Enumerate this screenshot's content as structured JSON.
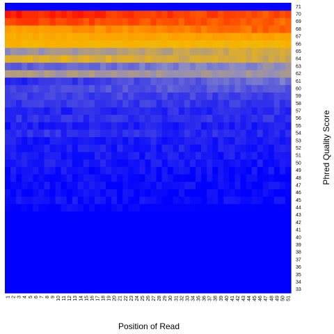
{
  "chart_data": {
    "type": "heatmap",
    "title": "",
    "xlabel": "Position of Read",
    "ylabel": "Phred Quality Score",
    "x": [
      1,
      2,
      3,
      4,
      5,
      6,
      7,
      8,
      9,
      10,
      11,
      12,
      13,
      14,
      15,
      16,
      17,
      18,
      19,
      20,
      21,
      22,
      23,
      24,
      25,
      26,
      27,
      28,
      29,
      30,
      31,
      32,
      33,
      34,
      35,
      36,
      37,
      38,
      39,
      40,
      41,
      42,
      43,
      44,
      45,
      46,
      47,
      48,
      49,
      50,
      51
    ],
    "y": [
      33,
      34,
      35,
      36,
      37,
      38,
      39,
      40,
      41,
      42,
      43,
      44,
      45,
      46,
      47,
      48,
      49,
      50,
      51,
      52,
      53,
      54,
      55,
      56,
      57,
      58,
      59,
      60,
      61,
      62,
      63,
      64,
      65,
      66,
      67,
      68,
      69,
      70,
      71
    ],
    "color_scale": {
      "low": "#0000ff",
      "mid_low": "#8a8ac8",
      "mid": "#f5b800",
      "high": "#ff9900",
      "peak": "#ff0000"
    },
    "intensity_rows": {
      "71": [
        0.0,
        0.0
      ],
      "70": [
        0.95,
        0.85
      ],
      "69": [
        0.88,
        0.82
      ],
      "68": [
        0.68,
        0.82
      ],
      "67": [
        0.62,
        0.68
      ],
      "66": [
        0.58,
        0.56
      ],
      "65": [
        0.32,
        0.5
      ],
      "64": [
        0.5,
        0.45
      ],
      "63": [
        0.2,
        0.32
      ],
      "62": [
        0.38,
        0.34
      ],
      "61": [
        0.08,
        0.25
      ],
      "60": [
        0.16,
        0.2
      ],
      "59": [
        0.14,
        0.14
      ],
      "58": [
        0.11,
        0.12
      ],
      "57": [
        0.08,
        0.1
      ],
      "56": [
        0.1,
        0.1
      ],
      "55": [
        0.06,
        0.07
      ],
      "54": [
        0.1,
        0.08
      ],
      "53": [
        0.06,
        0.06
      ],
      "52": [
        0.06,
        0.06
      ],
      "51": [
        0.05,
        0.05
      ],
      "50": [
        0.06,
        0.04
      ],
      "49": [
        0.04,
        0.03
      ],
      "48": [
        0.03,
        0.02
      ],
      "47": [
        0.03,
        0.02
      ],
      "46": [
        0.02,
        0.01
      ],
      "45": [
        0.04,
        0.02
      ],
      "44": [
        0.01,
        0.0
      ],
      "43": [
        0.0,
        0.0
      ],
      "42": [
        0.0,
        0.0
      ],
      "41": [
        0.0,
        0.0
      ],
      "40": [
        0.0,
        0.0
      ],
      "39": [
        0.0,
        0.0
      ],
      "38": [
        0.0,
        0.0
      ],
      "37": [
        0.0,
        0.0
      ],
      "36": [
        0.0,
        0.0
      ],
      "35": [
        0.0,
        0.0
      ],
      "34": [
        0.0,
        0.0
      ],
      "33": [
        0.0,
        0.0
      ]
    }
  }
}
